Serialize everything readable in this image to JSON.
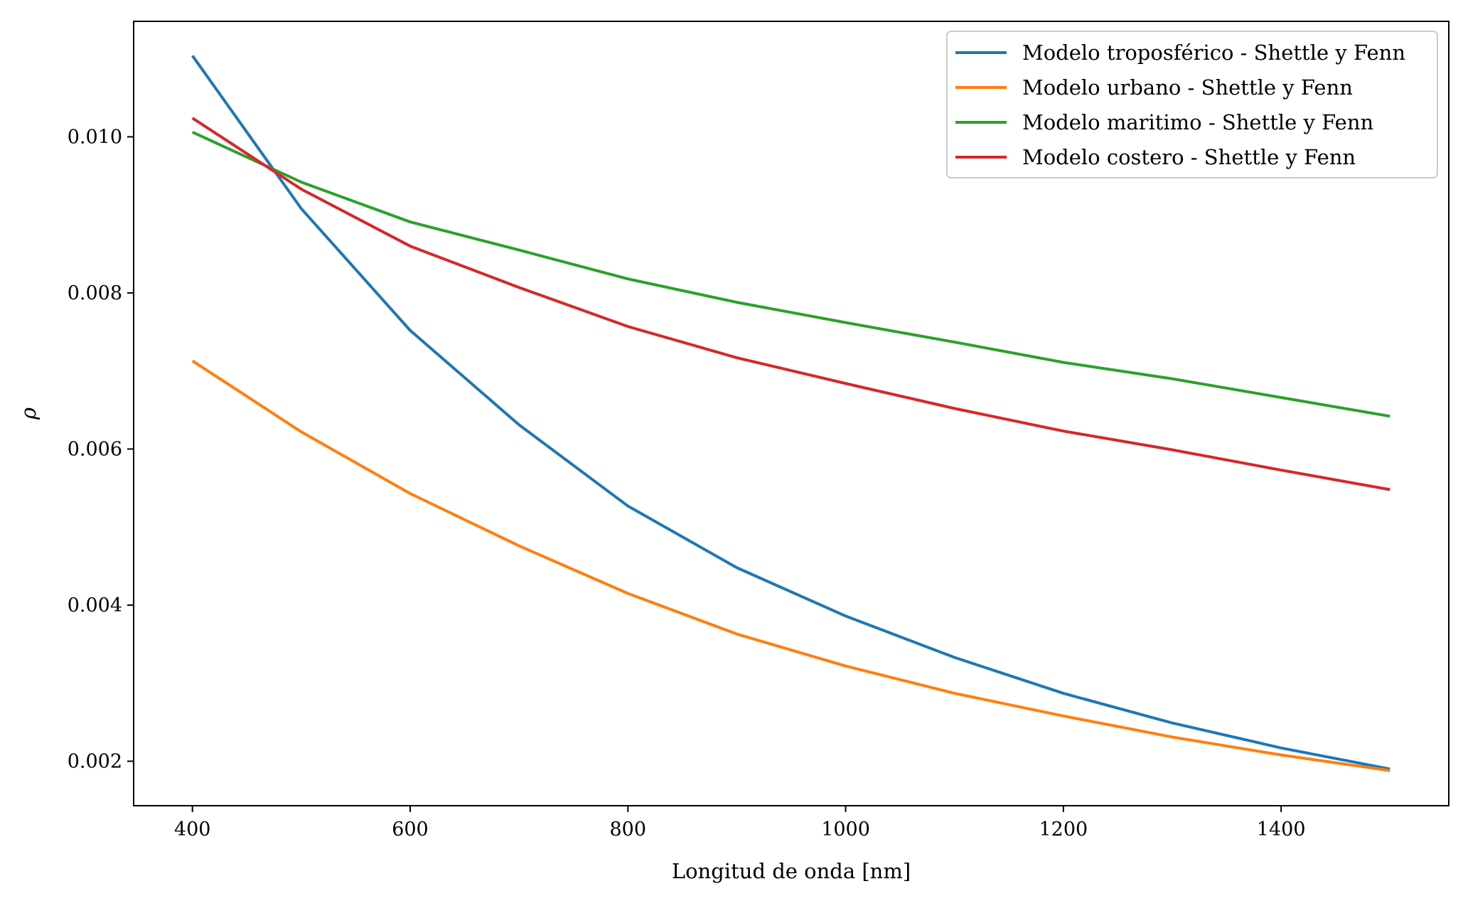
{
  "chart_data": {
    "type": "line",
    "title": "",
    "xlabel": "Longitud de onda [nm]",
    "ylabel": "ρ",
    "x": [
      400,
      500,
      600,
      700,
      800,
      900,
      1000,
      1100,
      1200,
      1300,
      1400,
      1500
    ],
    "xlim": [
      346,
      1554
    ],
    "ylim": [
      0.00143,
      0.01148
    ],
    "xticks": [
      400,
      600,
      800,
      1000,
      1200,
      1400
    ],
    "xtick_labels": [
      "400",
      "600",
      "800",
      "1000",
      "1200",
      "1400"
    ],
    "yticks": [
      0.002,
      0.004,
      0.006,
      0.008,
      0.01
    ],
    "ytick_labels": [
      "0.002",
      "0.004",
      "0.006",
      "0.008",
      "0.010"
    ],
    "grid": false,
    "legend_position": "top-right",
    "series": [
      {
        "name": "Modelo troposférico - Shettle y Fenn",
        "color": "#1f77b4",
        "values": [
          0.01104,
          0.00908,
          0.00752,
          0.00631,
          0.00527,
          0.00448,
          0.00386,
          0.00333,
          0.00287,
          0.00249,
          0.00217,
          0.0019
        ]
      },
      {
        "name": "Modelo urbano - Shettle y Fenn",
        "color": "#ff7f0e",
        "values": [
          0.00713,
          0.00622,
          0.00543,
          0.00476,
          0.00415,
          0.00363,
          0.00322,
          0.00287,
          0.00258,
          0.00231,
          0.00208,
          0.00188
        ]
      },
      {
        "name": "Modelo maritimo - Shettle y Fenn",
        "color": "#2ca02c",
        "values": [
          0.01006,
          0.00942,
          0.00891,
          0.00855,
          0.00818,
          0.00788,
          0.00762,
          0.00737,
          0.00711,
          0.0069,
          0.00666,
          0.00642
        ]
      },
      {
        "name": "Modelo costero - Shettle y Fenn",
        "color": "#d62728",
        "values": [
          0.01024,
          0.00933,
          0.0086,
          0.00807,
          0.00757,
          0.00717,
          0.00684,
          0.00652,
          0.00623,
          0.00599,
          0.00573,
          0.00548
        ]
      }
    ]
  }
}
